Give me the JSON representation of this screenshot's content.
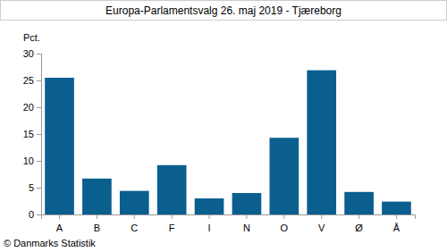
{
  "chart_data": {
    "type": "bar",
    "title": "Europa-Parlamentsvalg 26. maj 2019 - Tjæreborg",
    "y_label": "Pct.",
    "source": "© Danmarks Statistik",
    "categories": [
      "A",
      "B",
      "C",
      "F",
      "I",
      "N",
      "O",
      "V",
      "Ø",
      "Å"
    ],
    "values": [
      25.5,
      6.7,
      4.4,
      9.2,
      3.0,
      4.0,
      14.3,
      26.9,
      4.2,
      2.4
    ],
    "color": "#0b5f8f",
    "ylim": [
      0,
      30
    ],
    "yticks": [
      0,
      5,
      10,
      15,
      20,
      25,
      30
    ],
    "grid": false
  }
}
